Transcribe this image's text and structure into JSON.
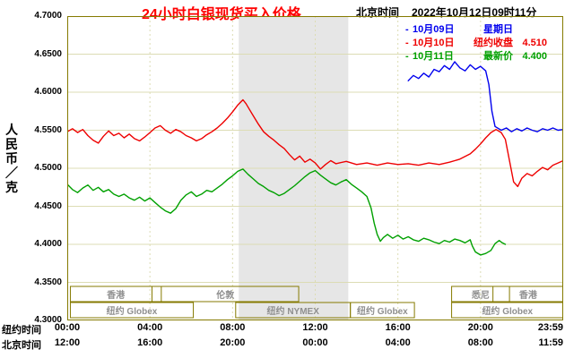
{
  "header": {
    "title": "24小时白银现货买入价格",
    "timezone_label": "北京时间",
    "datetime": "2022年10月12日09时11分"
  },
  "legend": {
    "items": [
      {
        "marker": "-",
        "date": "10月09日",
        "label": "星期日",
        "value": "",
        "color": "#0000ee"
      },
      {
        "marker": "-",
        "date": "10月10日",
        "label": "纽约收盘",
        "value": "4.510",
        "color": "#ee0000"
      },
      {
        "marker": "-",
        "date": "10月11日",
        "label": "最新价",
        "value": "4.400",
        "color": "#00a000"
      }
    ]
  },
  "y_axis": {
    "unit_label": "人民币／克",
    "ticks": [
      {
        "label": "4.7000",
        "value": 4.7
      },
      {
        "label": "4.6500",
        "value": 4.65
      },
      {
        "label": "4.6000",
        "value": 4.6
      },
      {
        "label": "4.5500",
        "value": 4.55
      },
      {
        "label": "4.5000",
        "value": 4.5
      },
      {
        "label": "4.4500",
        "value": 4.45
      },
      {
        "label": "4.4000",
        "value": 4.4
      },
      {
        "label": "4.3500",
        "value": 4.35
      },
      {
        "label": "4.3000",
        "value": 4.3
      }
    ]
  },
  "x_axis": {
    "ny_label": "纽约时间",
    "bj_label": "北京时间",
    "tick_hours": [
      0,
      4,
      8,
      12,
      16,
      20,
      23.983
    ],
    "ny_ticks": [
      "00:00",
      "04:00",
      "08:00",
      "12:00",
      "16:00",
      "20:00",
      "23:59"
    ],
    "bj_ticks": [
      "12:00",
      "16:00",
      "20:00",
      "00:00",
      "04:00",
      "08:00",
      "11:59"
    ]
  },
  "sessions": {
    "upper": [
      {
        "label": "香港",
        "start": 0.15,
        "end": 4.55
      },
      {
        "label": "伦敦",
        "start": 4.1,
        "end": 11.2
      },
      {
        "label": "悉尼",
        "start": 18.6,
        "end": 21.4
      },
      {
        "label": "香港",
        "start": 20.6,
        "end": 24.0
      }
    ],
    "lower": [
      {
        "label": "纽约 Globex",
        "start": 0.15,
        "end": 6.1
      },
      {
        "label": "纽约 NYMEX",
        "start": 8.15,
        "end": 13.7
      },
      {
        "label": "纽约 Globex",
        "start": 13.7,
        "end": 16.8
      },
      {
        "label": "纽约 Globex",
        "start": 18.6,
        "end": 24.0
      }
    ]
  },
  "chart_data": {
    "type": "line",
    "title": "24小时白银现货买入价格",
    "ylabel": "人民币／克",
    "xlabel_ny": "纽约时间",
    "xlabel_bj": "北京时间",
    "ylim": [
      4.3,
      4.7
    ],
    "xlim_hours": [
      0,
      24
    ],
    "grid": true,
    "legend_position": "top-right",
    "colors": {
      "border": "#857a00",
      "grid": "#dcdcb4",
      "band": "#e6e6e6"
    },
    "shaded_band": {
      "start": 8.3,
      "end": 13.6
    },
    "series": [
      {
        "name": "10月09日",
        "note": "星期日",
        "color": "#0000ee",
        "points": [
          [
            16.5,
            4.615
          ],
          [
            16.75,
            4.622
          ],
          [
            17.0,
            4.618
          ],
          [
            17.25,
            4.625
          ],
          [
            17.5,
            4.62
          ],
          [
            17.75,
            4.63
          ],
          [
            18.0,
            4.627
          ],
          [
            18.25,
            4.635
          ],
          [
            18.5,
            4.63
          ],
          [
            18.75,
            4.64
          ],
          [
            19.0,
            4.632
          ],
          [
            19.25,
            4.628
          ],
          [
            19.5,
            4.636
          ],
          [
            19.75,
            4.63
          ],
          [
            20.0,
            4.634
          ],
          [
            20.25,
            4.628
          ],
          [
            20.4,
            4.61
          ],
          [
            20.55,
            4.575
          ],
          [
            20.7,
            4.555
          ],
          [
            21.0,
            4.55
          ],
          [
            21.25,
            4.553
          ],
          [
            21.5,
            4.548
          ],
          [
            21.75,
            4.552
          ],
          [
            22.0,
            4.549
          ],
          [
            22.25,
            4.553
          ],
          [
            22.5,
            4.55
          ],
          [
            22.75,
            4.548
          ],
          [
            23.0,
            4.552
          ],
          [
            23.25,
            4.55
          ],
          [
            23.5,
            4.553
          ],
          [
            23.75,
            4.55
          ],
          [
            24.0,
            4.551
          ]
        ]
      },
      {
        "name": "10月10日",
        "close": "4.510",
        "color": "#ee0000",
        "points": [
          [
            0.0,
            4.548
          ],
          [
            0.25,
            4.552
          ],
          [
            0.5,
            4.547
          ],
          [
            0.75,
            4.551
          ],
          [
            1.0,
            4.543
          ],
          [
            1.25,
            4.537
          ],
          [
            1.5,
            4.533
          ],
          [
            1.75,
            4.542
          ],
          [
            2.0,
            4.549
          ],
          [
            2.25,
            4.543
          ],
          [
            2.5,
            4.546
          ],
          [
            2.75,
            4.54
          ],
          [
            3.0,
            4.545
          ],
          [
            3.25,
            4.539
          ],
          [
            3.5,
            4.536
          ],
          [
            3.75,
            4.541
          ],
          [
            4.0,
            4.547
          ],
          [
            4.25,
            4.553
          ],
          [
            4.5,
            4.556
          ],
          [
            4.75,
            4.55
          ],
          [
            5.0,
            4.546
          ],
          [
            5.25,
            4.551
          ],
          [
            5.5,
            4.548
          ],
          [
            5.75,
            4.543
          ],
          [
            6.0,
            4.54
          ],
          [
            6.25,
            4.536
          ],
          [
            6.5,
            4.539
          ],
          [
            6.75,
            4.544
          ],
          [
            7.0,
            4.548
          ],
          [
            7.25,
            4.553
          ],
          [
            7.5,
            4.559
          ],
          [
            7.75,
            4.566
          ],
          [
            8.0,
            4.574
          ],
          [
            8.25,
            4.583
          ],
          [
            8.5,
            4.59
          ],
          [
            8.65,
            4.585
          ],
          [
            8.8,
            4.578
          ],
          [
            9.0,
            4.569
          ],
          [
            9.25,
            4.558
          ],
          [
            9.5,
            4.548
          ],
          [
            9.75,
            4.542
          ],
          [
            10.0,
            4.537
          ],
          [
            10.25,
            4.531
          ],
          [
            10.5,
            4.526
          ],
          [
            10.75,
            4.518
          ],
          [
            11.0,
            4.511
          ],
          [
            11.25,
            4.516
          ],
          [
            11.5,
            4.508
          ],
          [
            11.75,
            4.512
          ],
          [
            12.0,
            4.507
          ],
          [
            12.25,
            4.499
          ],
          [
            12.5,
            4.505
          ],
          [
            12.75,
            4.51
          ],
          [
            13.0,
            4.506
          ],
          [
            13.5,
            4.509
          ],
          [
            14.0,
            4.505
          ],
          [
            14.5,
            4.507
          ],
          [
            15.0,
            4.504
          ],
          [
            15.5,
            4.507
          ],
          [
            16.0,
            4.505
          ],
          [
            16.5,
            4.506
          ],
          [
            17.0,
            4.504
          ],
          [
            17.5,
            4.507
          ],
          [
            18.0,
            4.505
          ],
          [
            18.5,
            4.508
          ],
          [
            19.0,
            4.512
          ],
          [
            19.5,
            4.519
          ],
          [
            19.75,
            4.525
          ],
          [
            20.0,
            4.532
          ],
          [
            20.25,
            4.54
          ],
          [
            20.5,
            4.547
          ],
          [
            20.75,
            4.551
          ],
          [
            21.0,
            4.547
          ],
          [
            21.2,
            4.538
          ],
          [
            21.4,
            4.51
          ],
          [
            21.6,
            4.482
          ],
          [
            21.8,
            4.476
          ],
          [
            22.0,
            4.487
          ],
          [
            22.25,
            4.493
          ],
          [
            22.5,
            4.49
          ],
          [
            22.75,
            4.496
          ],
          [
            23.0,
            4.501
          ],
          [
            23.25,
            4.498
          ],
          [
            23.5,
            4.504
          ],
          [
            23.75,
            4.507
          ],
          [
            24.0,
            4.51
          ]
        ]
      },
      {
        "name": "10月11日",
        "latest": "4.400",
        "color": "#00a000",
        "points": [
          [
            0.0,
            4.479
          ],
          [
            0.25,
            4.472
          ],
          [
            0.5,
            4.468
          ],
          [
            0.75,
            4.474
          ],
          [
            1.0,
            4.478
          ],
          [
            1.25,
            4.471
          ],
          [
            1.5,
            4.475
          ],
          [
            1.75,
            4.469
          ],
          [
            2.0,
            4.472
          ],
          [
            2.25,
            4.466
          ],
          [
            2.5,
            4.463
          ],
          [
            2.75,
            4.466
          ],
          [
            3.0,
            4.461
          ],
          [
            3.25,
            4.458
          ],
          [
            3.5,
            4.462
          ],
          [
            3.75,
            4.457
          ],
          [
            4.0,
            4.461
          ],
          [
            4.25,
            4.455
          ],
          [
            4.5,
            4.449
          ],
          [
            4.75,
            4.444
          ],
          [
            5.0,
            4.441
          ],
          [
            5.25,
            4.447
          ],
          [
            5.5,
            4.458
          ],
          [
            5.75,
            4.465
          ],
          [
            6.0,
            4.469
          ],
          [
            6.25,
            4.463
          ],
          [
            6.5,
            4.466
          ],
          [
            6.75,
            4.471
          ],
          [
            7.0,
            4.469
          ],
          [
            7.25,
            4.474
          ],
          [
            7.5,
            4.479
          ],
          [
            7.75,
            4.485
          ],
          [
            8.0,
            4.49
          ],
          [
            8.25,
            4.496
          ],
          [
            8.5,
            4.499
          ],
          [
            8.75,
            4.492
          ],
          [
            9.0,
            4.486
          ],
          [
            9.25,
            4.48
          ],
          [
            9.5,
            4.476
          ],
          [
            9.75,
            4.471
          ],
          [
            10.0,
            4.468
          ],
          [
            10.25,
            4.464
          ],
          [
            10.5,
            4.467
          ],
          [
            10.75,
            4.472
          ],
          [
            11.0,
            4.477
          ],
          [
            11.25,
            4.483
          ],
          [
            11.5,
            4.489
          ],
          [
            11.75,
            4.494
          ],
          [
            12.0,
            4.497
          ],
          [
            12.25,
            4.491
          ],
          [
            12.5,
            4.486
          ],
          [
            12.75,
            4.481
          ],
          [
            13.0,
            4.478
          ],
          [
            13.25,
            4.482
          ],
          [
            13.5,
            4.485
          ],
          [
            13.75,
            4.479
          ],
          [
            14.0,
            4.474
          ],
          [
            14.25,
            4.469
          ],
          [
            14.5,
            4.463
          ],
          [
            14.7,
            4.448
          ],
          [
            14.85,
            4.428
          ],
          [
            15.0,
            4.413
          ],
          [
            15.15,
            4.404
          ],
          [
            15.3,
            4.409
          ],
          [
            15.5,
            4.413
          ],
          [
            15.75,
            4.408
          ],
          [
            16.0,
            4.412
          ],
          [
            16.25,
            4.407
          ],
          [
            16.5,
            4.41
          ],
          [
            16.75,
            4.406
          ],
          [
            17.0,
            4.404
          ],
          [
            17.25,
            4.408
          ],
          [
            17.5,
            4.406
          ],
          [
            17.75,
            4.403
          ],
          [
            18.0,
            4.401
          ],
          [
            18.25,
            4.405
          ],
          [
            18.5,
            4.403
          ],
          [
            18.75,
            4.407
          ],
          [
            19.0,
            4.405
          ],
          [
            19.25,
            4.402
          ],
          [
            19.5,
            4.406
          ],
          [
            19.6,
            4.398
          ],
          [
            19.75,
            4.39
          ],
          [
            20.0,
            4.386
          ],
          [
            20.25,
            4.388
          ],
          [
            20.5,
            4.392
          ],
          [
            20.7,
            4.401
          ],
          [
            20.9,
            4.405
          ],
          [
            21.05,
            4.402
          ],
          [
            21.2,
            4.4
          ]
        ]
      }
    ]
  }
}
